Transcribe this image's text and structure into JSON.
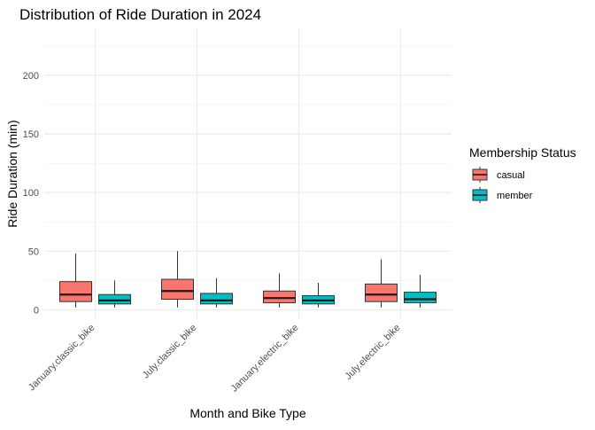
{
  "chart_data": {
    "type": "boxplot",
    "title": "Distribution of Ride Duration in 2024",
    "xlabel": "Month and Bike Type",
    "ylabel": "Ride Duration (min)",
    "ylim": [
      -8,
      240
    ],
    "y_ticks": [
      0,
      50,
      100,
      150,
      200
    ],
    "grid": true,
    "legend_position": "right",
    "legend_title": "Membership Status",
    "categories": [
      "January.classic_bike",
      "July.classic_bike",
      "January.electric_bike",
      "July.electric_bike"
    ],
    "series": [
      {
        "name": "casual",
        "color": "#F8766D",
        "boxes": [
          {
            "min": 2,
            "q1": 7,
            "median": 13,
            "q3": 24,
            "max": 48
          },
          {
            "min": 2,
            "q1": 9,
            "median": 16,
            "q3": 26,
            "max": 50
          },
          {
            "min": 2,
            "q1": 6,
            "median": 10,
            "q3": 16,
            "max": 31
          },
          {
            "min": 2,
            "q1": 7,
            "median": 13,
            "q3": 22,
            "max": 43
          }
        ]
      },
      {
        "name": "member",
        "color": "#00BFC4",
        "boxes": [
          {
            "min": 2,
            "q1": 5,
            "median": 8,
            "q3": 13,
            "max": 25
          },
          {
            "min": 2,
            "q1": 5,
            "median": 8,
            "q3": 14,
            "max": 27
          },
          {
            "min": 2,
            "q1": 5,
            "median": 8,
            "q3": 12,
            "max": 23
          },
          {
            "min": 2,
            "q1": 6,
            "median": 9,
            "q3": 15,
            "max": 30
          }
        ]
      }
    ]
  }
}
